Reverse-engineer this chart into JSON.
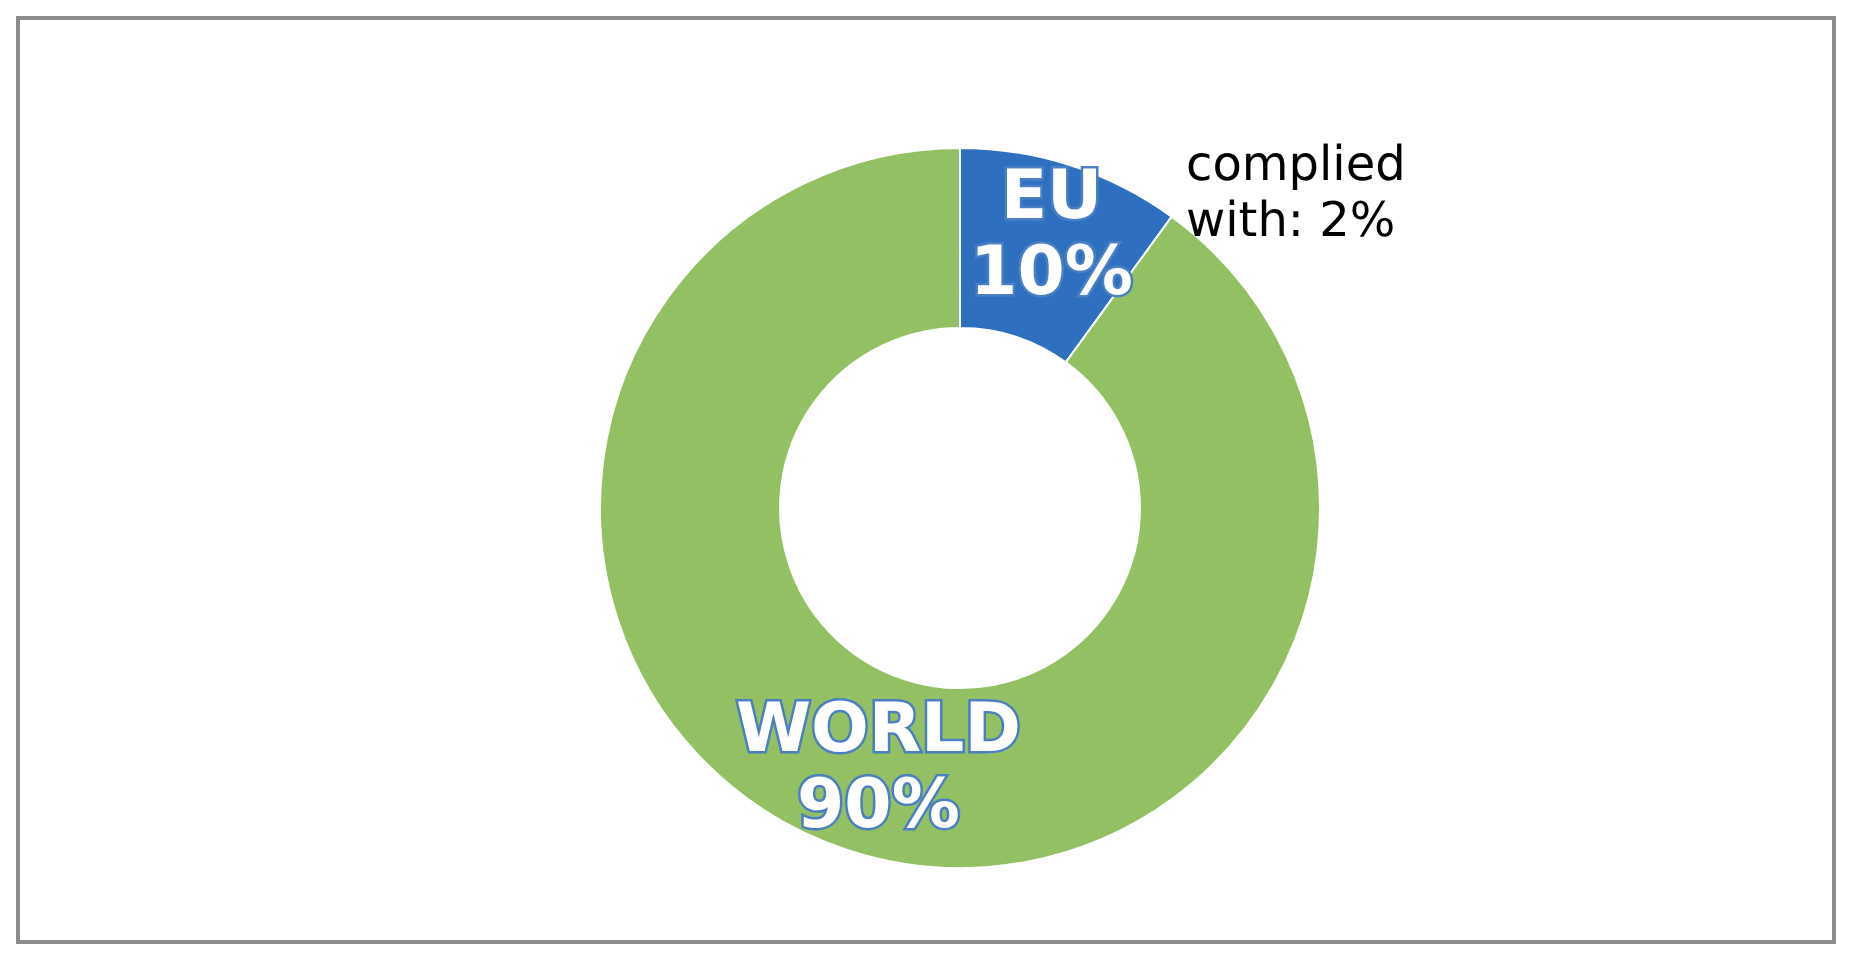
{
  "chart_data": {
    "type": "donut",
    "categories": [
      "EU",
      "WORLD"
    ],
    "values": [
      10,
      90
    ],
    "value_labels": [
      "10%",
      "90%"
    ],
    "colors": [
      "#2f6fbf",
      "#93c063"
    ],
    "annotations": [
      "complied with: 2%"
    ]
  }
}
